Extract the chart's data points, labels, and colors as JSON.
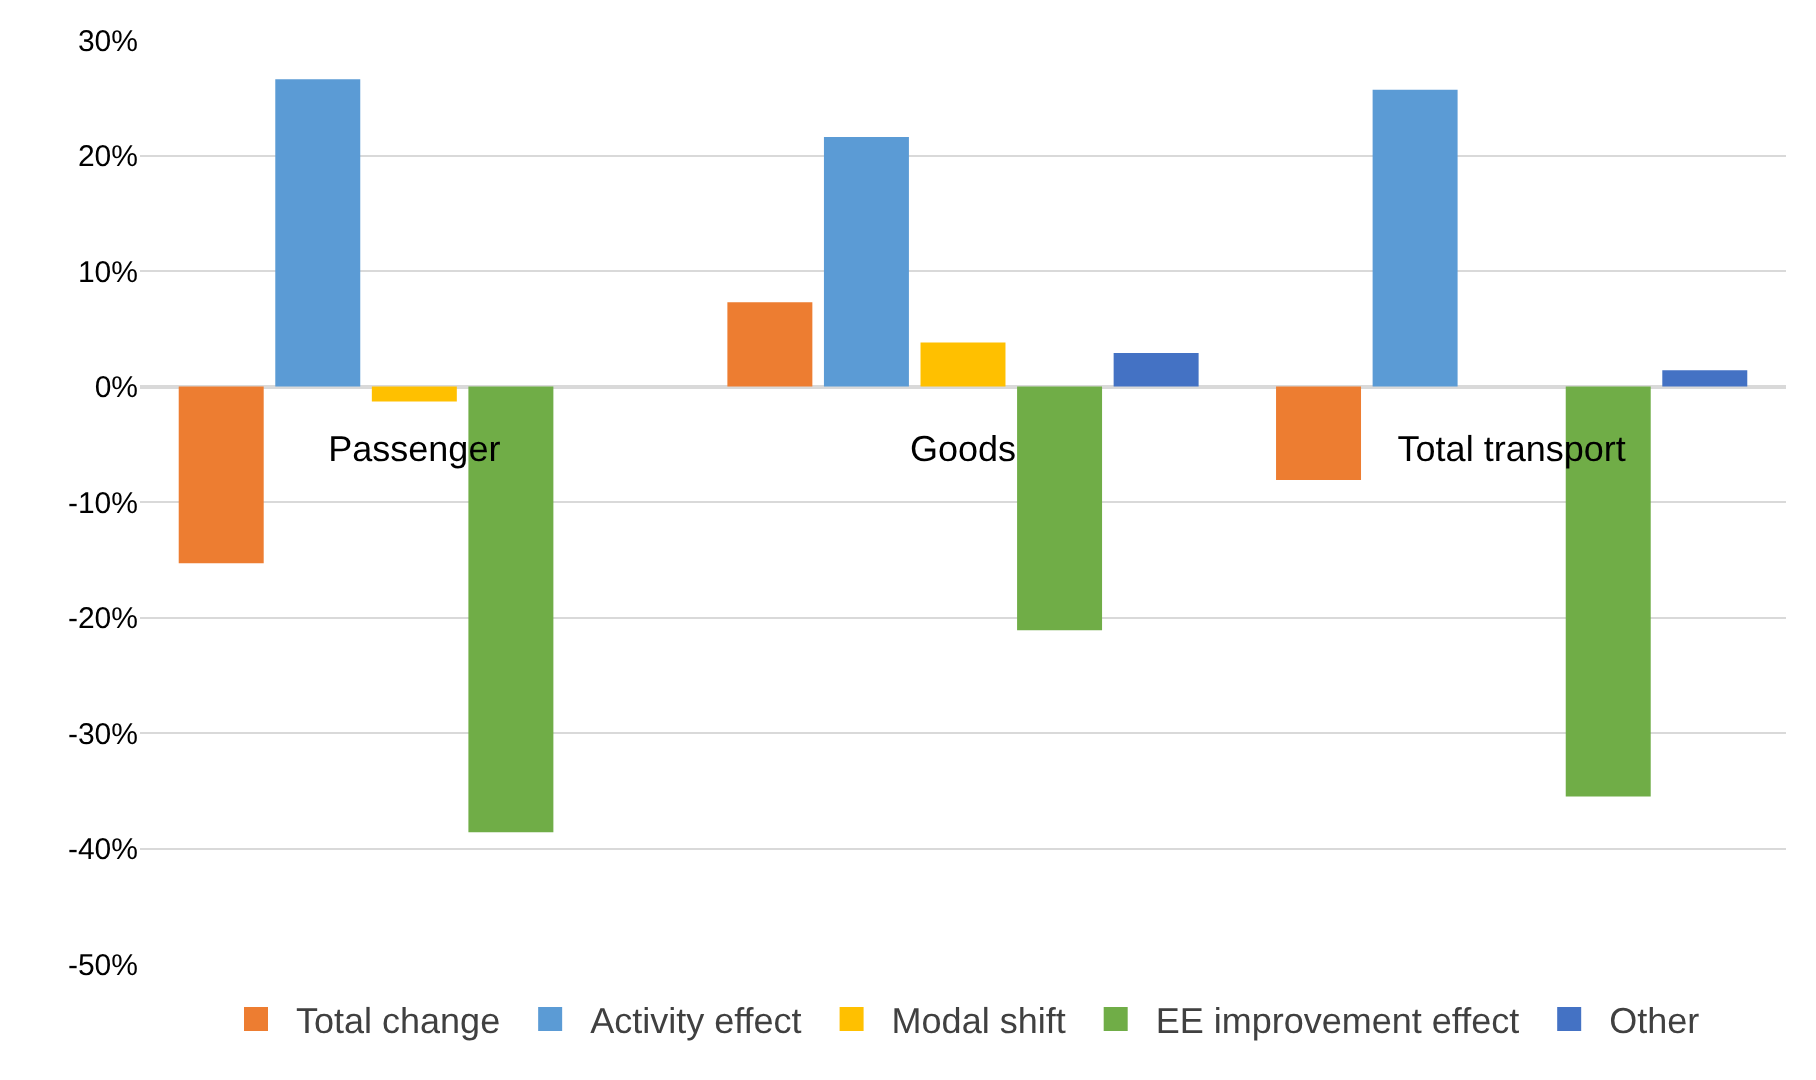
{
  "chart_data": {
    "type": "bar",
    "categories": [
      "Passenger",
      "Goods",
      "Total transport"
    ],
    "series": [
      {
        "name": "Total change",
        "color": "#ed7d31",
        "values": [
          -15.3,
          7.3,
          -8.1
        ]
      },
      {
        "name": "Activity effect",
        "color": "#5b9bd5",
        "values": [
          26.6,
          21.6,
          25.7
        ]
      },
      {
        "name": "Modal shift",
        "color": "#ffc000",
        "values": [
          -1.3,
          3.8,
          null
        ]
      },
      {
        "name": "EE improvement effect",
        "color": "#70ad47",
        "values": [
          -38.6,
          -21.1,
          -35.5
        ]
      },
      {
        "name": "Other",
        "color": "#4472c4",
        "values": [
          null,
          2.9,
          1.4
        ]
      }
    ],
    "ylim": [
      -50,
      30
    ],
    "yticks": [
      {
        "value": -50,
        "label": "-50%"
      },
      {
        "value": -40,
        "label": "-40%"
      },
      {
        "value": -30,
        "label": "-30%"
      },
      {
        "value": -20,
        "label": "-20%"
      },
      {
        "value": -10,
        "label": "-10%"
      },
      {
        "value": 0,
        "label": "0%"
      },
      {
        "value": 10,
        "label": "10%"
      },
      {
        "value": 20,
        "label": "20%"
      },
      {
        "value": 30,
        "label": "30%"
      }
    ],
    "grid": "y",
    "legend": "bottom"
  }
}
